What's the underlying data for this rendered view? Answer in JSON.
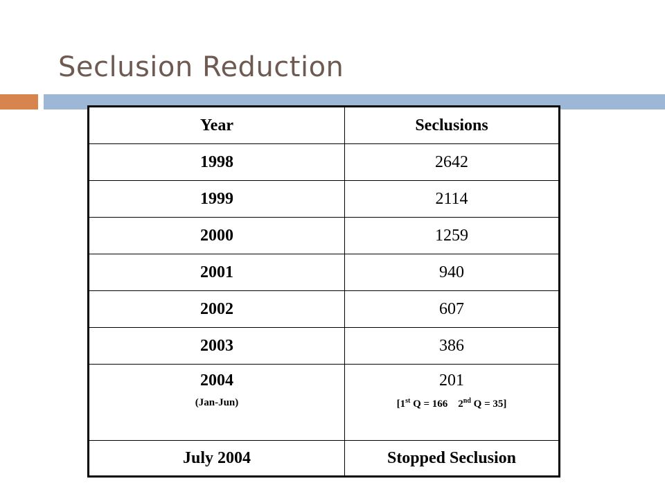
{
  "slide": {
    "title": "Seclusion Reduction",
    "colors": {
      "title": "#6e5a52",
      "accent_orange": "#d8844f",
      "accent_blue": "#9cb8d6"
    }
  },
  "table": {
    "headers": [
      "Year",
      "Seclusions"
    ],
    "rows": [
      {
        "year": "1998",
        "value": "2642"
      },
      {
        "year": "1999",
        "value": "2114"
      },
      {
        "year": "2000",
        "value": "1259"
      },
      {
        "year": "2001",
        "value": "940"
      },
      {
        "year": "2002",
        "value": "607"
      },
      {
        "year": "2003",
        "value": "386"
      }
    ],
    "row_2004": {
      "year": "2004",
      "year_note": "(Jan-Jun)",
      "value": "201",
      "q_open": "[1",
      "q1_sup": "st",
      "q1_text": " Q = 166",
      "q2_lead": "2",
      "q2_sup": "nd",
      "q2_text": " Q = 35]"
    },
    "row_final": {
      "year": "July 2004",
      "value": "Stopped Seclusion"
    }
  }
}
